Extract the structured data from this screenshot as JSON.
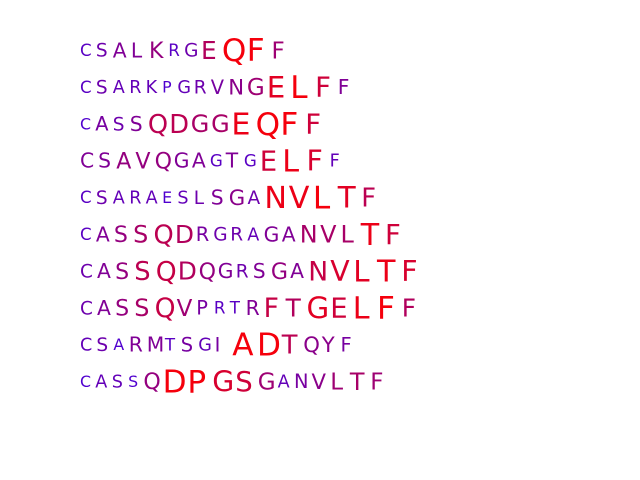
{
  "sequences": [
    {
      "residues": [
        [
          "C",
          0.15
        ],
        [
          "S",
          0.25
        ],
        [
          "A",
          0.35
        ],
        [
          "L",
          0.35
        ],
        [
          "K",
          0.45
        ],
        [
          "R",
          0.15
        ],
        [
          "G",
          0.25
        ],
        [
          "E",
          0.6
        ],
        [
          "Q",
          0.95
        ],
        [
          "F",
          0.95
        ],
        [
          "F",
          0.5
        ]
      ]
    },
    {
      "residues": [
        [
          "C",
          0.15
        ],
        [
          "S",
          0.25
        ],
        [
          "A",
          0.2
        ],
        [
          "R",
          0.2
        ],
        [
          "K",
          0.2
        ],
        [
          "P",
          0.1
        ],
        [
          "G",
          0.2
        ],
        [
          "R",
          0.25
        ],
        [
          "V",
          0.3
        ],
        [
          "N",
          0.4
        ],
        [
          "G",
          0.5
        ],
        [
          "E",
          0.85
        ],
        [
          "L",
          0.95
        ],
        [
          "F",
          0.75
        ],
        [
          "F",
          0.35
        ]
      ]
    },
    {
      "residues": [
        [
          "C",
          0.1
        ],
        [
          "A",
          0.3
        ],
        [
          "S",
          0.25
        ],
        [
          "S",
          0.35
        ],
        [
          "Q",
          0.65
        ],
        [
          "D",
          0.65
        ],
        [
          "G",
          0.55
        ],
        [
          "G",
          0.55
        ],
        [
          "E",
          0.9
        ],
        [
          "Q",
          0.95
        ],
        [
          "F",
          0.95
        ],
        [
          "F",
          0.75
        ]
      ]
    },
    {
      "residues": [
        [
          "C",
          0.35
        ],
        [
          "S",
          0.35
        ],
        [
          "A",
          0.45
        ],
        [
          "V",
          0.45
        ],
        [
          "Q",
          0.45
        ],
        [
          "G",
          0.35
        ],
        [
          "A",
          0.35
        ],
        [
          "G",
          0.15
        ],
        [
          "T",
          0.35
        ],
        [
          "G",
          0.15
        ],
        [
          "E",
          0.75
        ],
        [
          "L",
          0.9
        ],
        [
          "F",
          0.8
        ],
        [
          "F",
          0.2
        ]
      ]
    },
    {
      "residues": [
        [
          "C",
          0.15
        ],
        [
          "S",
          0.25
        ],
        [
          "A",
          0.2
        ],
        [
          "R",
          0.2
        ],
        [
          "A",
          0.2
        ],
        [
          "E",
          0.1
        ],
        [
          "S",
          0.2
        ],
        [
          "L",
          0.25
        ],
        [
          "S",
          0.35
        ],
        [
          "G",
          0.4
        ],
        [
          "A",
          0.25
        ],
        [
          "N",
          0.9
        ],
        [
          "V",
          0.9
        ],
        [
          "L",
          0.95
        ],
        [
          "T",
          0.85
        ],
        [
          "F",
          0.65
        ]
      ]
    },
    {
      "residues": [
        [
          "C",
          0.15
        ],
        [
          "A",
          0.35
        ],
        [
          "S",
          0.45
        ],
        [
          "S",
          0.55
        ],
        [
          "Q",
          0.65
        ],
        [
          "D",
          0.6
        ],
        [
          "R",
          0.3
        ],
        [
          "G",
          0.25
        ],
        [
          "R",
          0.25
        ],
        [
          "A",
          0.2
        ],
        [
          "G",
          0.35
        ],
        [
          "A",
          0.35
        ],
        [
          "N",
          0.55
        ],
        [
          "V",
          0.55
        ],
        [
          "L",
          0.55
        ],
        [
          "T",
          0.9
        ],
        [
          "F",
          0.75
        ]
      ]
    },
    {
      "residues": [
        [
          "C",
          0.25
        ],
        [
          "A",
          0.35
        ],
        [
          "S",
          0.45
        ],
        [
          "S",
          0.65
        ],
        [
          "Q",
          0.7
        ],
        [
          "D",
          0.6
        ],
        [
          "Q",
          0.45
        ],
        [
          "G",
          0.35
        ],
        [
          "R",
          0.25
        ],
        [
          "S",
          0.35
        ],
        [
          "G",
          0.45
        ],
        [
          "A",
          0.35
        ],
        [
          "N",
          0.7
        ],
        [
          "V",
          0.8
        ],
        [
          "L",
          0.85
        ],
        [
          "T",
          0.9
        ],
        [
          "F",
          0.8
        ]
      ]
    },
    {
      "residues": [
        [
          "C",
          0.25
        ],
        [
          "A",
          0.35
        ],
        [
          "S",
          0.45
        ],
        [
          "S",
          0.55
        ],
        [
          "Q",
          0.7
        ],
        [
          "V",
          0.5
        ],
        [
          "P",
          0.3
        ],
        [
          "R",
          0.15
        ],
        [
          "T",
          0.15
        ],
        [
          "R",
          0.35
        ],
        [
          "F",
          0.7
        ],
        [
          "T",
          0.6
        ],
        [
          "G",
          0.85
        ],
        [
          "E",
          0.75
        ],
        [
          "L",
          0.9
        ],
        [
          "F",
          0.95
        ],
        [
          "F",
          0.6
        ]
      ]
    },
    {
      "residues": [
        [
          "C",
          0.2
        ],
        [
          "S",
          0.25
        ],
        [
          "A",
          0.1
        ],
        [
          "R",
          0.35
        ],
        [
          "M",
          0.35
        ],
        [
          "T",
          0.15
        ],
        [
          "S",
          0.3
        ],
        [
          "G",
          0.2
        ],
        [
          "I",
          0.3
        ],
        [
          "A",
          0.95
        ],
        [
          "D",
          0.95
        ],
        [
          "T",
          0.65
        ],
        [
          "Q",
          0.4
        ],
        [
          "Y",
          0.4
        ],
        [
          "F",
          0.3
        ]
      ]
    },
    {
      "residues": [
        [
          "C",
          0.1
        ],
        [
          "A",
          0.2
        ],
        [
          "S",
          0.2
        ],
        [
          "S",
          0.1
        ],
        [
          "Q",
          0.45
        ],
        [
          "D",
          0.95
        ],
        [
          "P",
          0.95
        ],
        [
          "G",
          0.8
        ],
        [
          "S",
          0.75
        ],
        [
          "G",
          0.5
        ],
        [
          "A",
          0.2
        ],
        [
          "N",
          0.3
        ],
        [
          "V",
          0.4
        ],
        [
          "L",
          0.5
        ],
        [
          "T",
          0.55
        ],
        [
          "F",
          0.5
        ]
      ]
    }
  ]
}
